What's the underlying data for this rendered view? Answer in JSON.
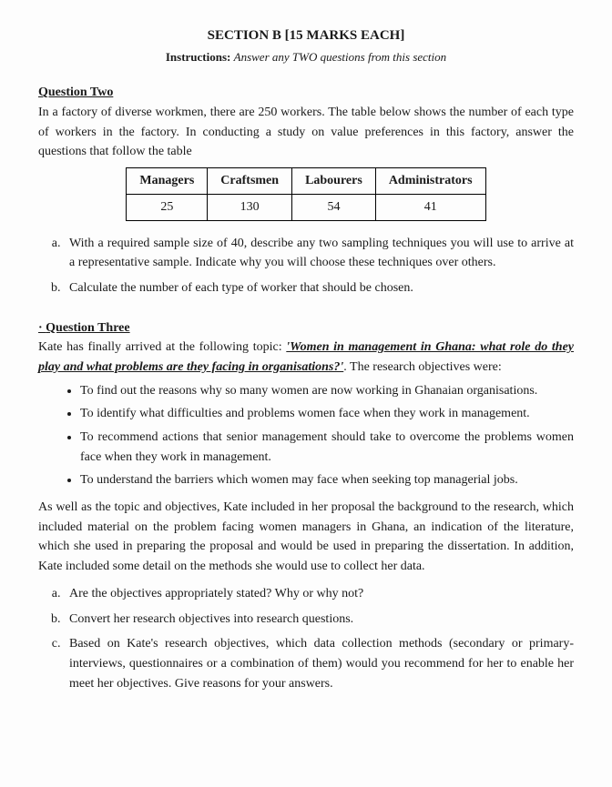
{
  "header": {
    "section_title": "SECTION B [15 MARKS EACH]",
    "instructions_label": "Instructions:",
    "instructions_body": "Answer any TWO questions from this section"
  },
  "q2": {
    "heading": "Question Two",
    "intro": "In a factory of diverse workmen, there are 250 workers. The table below shows the number of each type of workers in the factory. In conducting a study on value preferences in this factory, answer the questions that follow the table",
    "table": {
      "columns": [
        "Managers",
        "Craftsmen",
        "Labourers",
        "Administrators"
      ],
      "row": [
        "25",
        "130",
        "54",
        "41"
      ]
    },
    "parts": {
      "a": "With a required sample size of 40, describe any two sampling techniques you will use to arrive at a representative sample. Indicate why you will choose these techniques over others.",
      "b": "Calculate the number of each type of worker that should be chosen."
    }
  },
  "q3": {
    "heading": "Question Three",
    "lead_pre": "Kate has finally arrived at the following topic: ",
    "topic": "'Women in management in Ghana: what role do they play and what problems are they facing in organisations?'",
    "lead_post": ". The research objectives were:",
    "bullets": [
      "To find out the reasons why so many women are now working in Ghanaian organisations.",
      "To identify what difficulties and problems women face when they work in management.",
      "To recommend actions that senior management should take to overcome the problems women face when they work in management.",
      "To understand the barriers which women may face when seeking top managerial jobs."
    ],
    "follow": "As well as the topic and objectives, Kate included in her proposal the background to the research, which included material on the problem facing women managers in Ghana, an indication of the literature, which she used in preparing the proposal and would be used in preparing the dissertation. In addition, Kate included some detail on the methods she would use to collect her data.",
    "parts": {
      "a": "Are the objectives appropriately stated? Why or why not?",
      "b": "Convert her research objectives into research questions.",
      "c": "Based on Kate's research objectives, which data collection methods (secondary or primary- interviews, questionnaires or a combination of them) would you recommend for her to enable her meet her objectives. Give reasons for your answers."
    }
  }
}
